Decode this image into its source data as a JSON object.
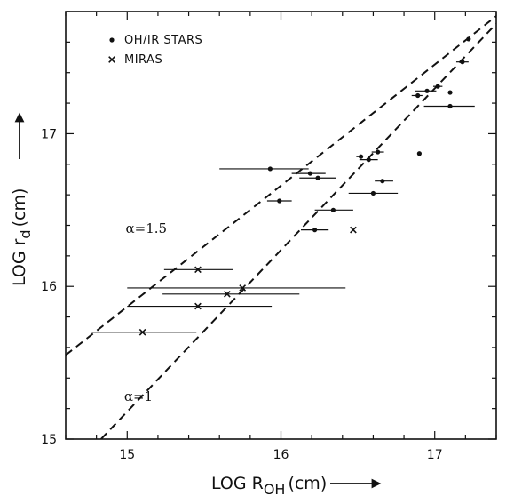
{
  "chart_data": {
    "type": "scatter",
    "xlabel": "LOG R",
    "xlabel_sub": "OH",
    "xlabel_unit": "(cm)",
    "ylabel": "LOG r",
    "ylabel_sub": "d",
    "ylabel_unit": "(cm)",
    "xlim": [
      14.6,
      17.4
    ],
    "ylim": [
      15.0,
      17.8
    ],
    "xticks": [
      15,
      16,
      17
    ],
    "yticks": [
      15,
      16,
      17
    ],
    "x_tick_labels": [
      "15",
      "16",
      "17"
    ],
    "y_tick_labels": [
      "15",
      "16",
      "17"
    ],
    "legend": [
      {
        "marker": "dot",
        "label": "OH/IR STARS"
      },
      {
        "marker": "cross",
        "label": "MIRAS"
      }
    ],
    "legend_position": "top-left",
    "lines": [
      {
        "label": "α=1.5",
        "style": "dashed",
        "points": [
          [
            14.6,
            15.55
          ],
          [
            17.4,
            17.77
          ]
        ]
      },
      {
        "label": "α=1",
        "style": "dashed",
        "points": [
          [
            14.83,
            15.0
          ],
          [
            17.4,
            17.72
          ]
        ]
      }
    ],
    "series": [
      {
        "name": "OH/IR STARS",
        "marker": "dot",
        "points": [
          {
            "x": 17.22,
            "y": 17.62,
            "xerr_low": 0.0,
            "xerr_high": 0.0
          },
          {
            "x": 17.18,
            "y": 17.47,
            "xerr_low": 0.04,
            "xerr_high": 0.04
          },
          {
            "x": 17.02,
            "y": 17.31,
            "xerr_low": 0.03,
            "xerr_high": 0.03
          },
          {
            "x": 16.95,
            "y": 17.28,
            "xerr_low": 0.08,
            "xerr_high": 0.06
          },
          {
            "x": 17.1,
            "y": 17.27,
            "xerr_low": 0.0,
            "xerr_high": 0.0
          },
          {
            "x": 16.89,
            "y": 17.25,
            "xerr_low": 0.04,
            "xerr_high": 0.03
          },
          {
            "x": 17.1,
            "y": 17.18,
            "xerr_low": 0.17,
            "xerr_high": 0.16
          },
          {
            "x": 16.9,
            "y": 16.87,
            "xerr_low": 0.0,
            "xerr_high": 0.0
          },
          {
            "x": 16.63,
            "y": 16.88,
            "xerr_low": 0.04,
            "xerr_high": 0.04
          },
          {
            "x": 16.52,
            "y": 16.85,
            "xerr_low": 0.03,
            "xerr_high": 0.0
          },
          {
            "x": 16.57,
            "y": 16.83,
            "xerr_low": 0.06,
            "xerr_high": 0.06
          },
          {
            "x": 15.93,
            "y": 16.77,
            "xerr_low": 0.33,
            "xerr_high": 0.25
          },
          {
            "x": 16.19,
            "y": 16.74,
            "xerr_low": 0.12,
            "xerr_high": 0.1
          },
          {
            "x": 16.24,
            "y": 16.71,
            "xerr_low": 0.12,
            "xerr_high": 0.12
          },
          {
            "x": 16.66,
            "y": 16.69,
            "xerr_low": 0.05,
            "xerr_high": 0.07
          },
          {
            "x": 16.6,
            "y": 16.61,
            "xerr_low": 0.16,
            "xerr_high": 0.16
          },
          {
            "x": 15.99,
            "y": 16.56,
            "xerr_low": 0.08,
            "xerr_high": 0.08
          },
          {
            "x": 16.34,
            "y": 16.5,
            "xerr_low": 0.12,
            "xerr_high": 0.13
          },
          {
            "x": 16.22,
            "y": 16.37,
            "xerr_low": 0.09,
            "xerr_high": 0.09
          }
        ]
      },
      {
        "name": "MIRAS",
        "marker": "cross",
        "points": [
          {
            "x": 16.47,
            "y": 16.37,
            "xerr_low": 0.0,
            "xerr_high": 0.0
          },
          {
            "x": 15.46,
            "y": 16.11,
            "xerr_low": 0.22,
            "xerr_high": 0.23
          },
          {
            "x": 15.75,
            "y": 15.99,
            "xerr_low": 0.75,
            "xerr_high": 0.67
          },
          {
            "x": 15.65,
            "y": 15.95,
            "xerr_low": 0.42,
            "xerr_high": 0.47
          },
          {
            "x": 15.46,
            "y": 15.87,
            "xerr_low": 0.46,
            "xerr_high": 0.48
          },
          {
            "x": 15.1,
            "y": 15.7,
            "xerr_low": 0.33,
            "xerr_high": 0.35
          }
        ]
      }
    ],
    "annotations": [
      {
        "text": "α=1.5",
        "x": 14.99,
        "y": 16.35
      },
      {
        "text": "α=1",
        "x": 14.98,
        "y": 15.25
      }
    ],
    "grid": false
  }
}
